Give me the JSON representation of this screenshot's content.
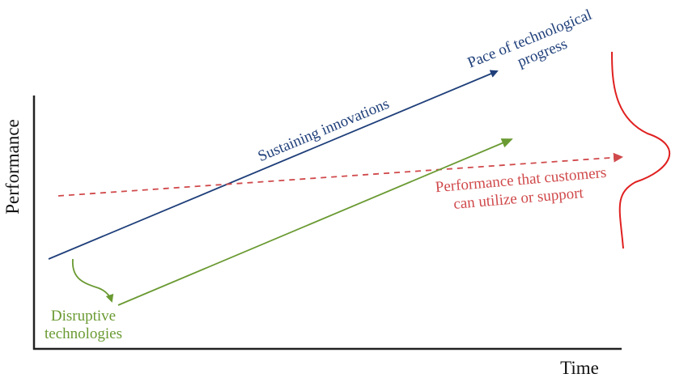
{
  "axes": {
    "y_label": "Performance",
    "x_label": "Time"
  },
  "lines": {
    "technological_progress": {
      "label_line1": "Pace of technological",
      "label_line2": "progress",
      "along_label": "Sustaining innovations",
      "color": "#1f3f7a"
    },
    "customer_needs": {
      "label_line1": "Performance that customers",
      "label_line2": "can utilize or support",
      "color": "#d0494b"
    },
    "disruptive": {
      "label_line1": "Disruptive",
      "label_line2": "technologies",
      "color": "#6a9a32"
    }
  },
  "distribution_curve_color": "#e02020"
}
